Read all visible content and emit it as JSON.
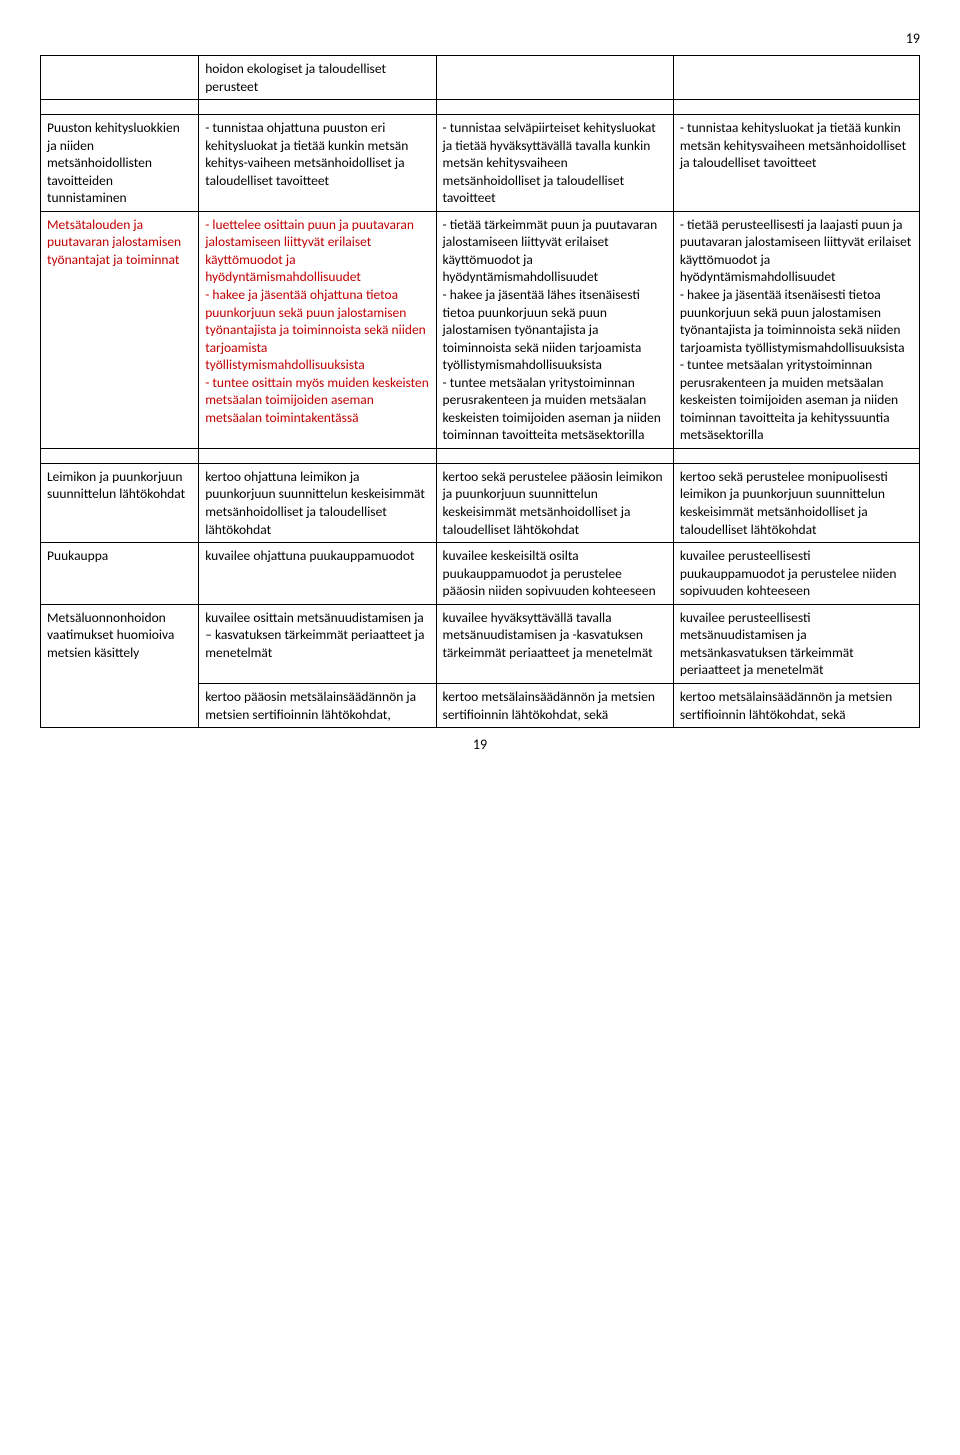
{
  "pageNumberTop": "19",
  "pageNumberBottom": "19",
  "topBlock": {
    "c1": "",
    "c2": "hoidon ekologiset ja taloudelliset perusteet",
    "c3": "",
    "c4": ""
  },
  "rows": [
    {
      "c1": "Puuston kehitysluokkien ja niiden metsänhoidollisten tavoitteiden tunnistaminen",
      "c2": "- tunnistaa ohjattuna puuston eri kehitysluokat ja tietää kunkin metsän kehitys-vaiheen metsänhoidolliset ja taloudelliset tavoitteet",
      "c3": "- tunnistaa selväpiirteiset kehitysluokat ja tietää hyväksyttävällä tavalla kunkin metsän kehitysvaiheen metsänhoidolliset ja taloudelliset tavoitteet",
      "c4": "- tunnistaa kehitysluokat ja tietää kunkin metsän kehitysvaiheen metsänhoidolliset ja taloudelliset tavoitteet",
      "c1_red": false
    },
    {
      "c1": "Metsätalouden ja puutavaran jalostamisen työnantajat ja toiminnat",
      "c2": "- luettelee osittain puun ja puutavaran jalostamiseen liittyvät erilaiset käyttömuodot ja hyödyntämismahdollisuudet\n- hakee ja jäsentää ohjattuna tietoa puunkorjuun sekä puun jalostamisen työnantajista ja toiminnoista sekä niiden tarjoamista työllistymismahdollisuuksista\n- tuntee osittain myös muiden keskeisten metsäalan toimijoiden aseman metsäalan toimintakentässä",
      "c3": "- tietää tärkeimmät puun ja puutavaran jalostamiseen liittyvät erilaiset käyttömuodot ja hyödyntämismahdollisuudet\n- hakee ja jäsentää lähes itsenäisesti tietoa puunkorjuun sekä puun jalostamisen työnantajista ja toiminnoista sekä niiden tarjoamista työllistymismahdollisuuksista\n- tuntee metsäalan yritystoiminnan perusrakenteen ja muiden metsäalan keskeisten toimijoiden aseman ja niiden toiminnan tavoitteita metsäsektorilla",
      "c4": "- tietää perusteellisesti ja laajasti puun ja puutavaran jalostamiseen liittyvät erilaiset käyttömuodot ja hyödyntämismahdollisuudet\n- hakee ja jäsentää itsenäisesti tietoa puunkorjuun sekä puun jalostamisen työnantajista ja toiminnoista sekä niiden tarjoamista työllistymismahdollisuuksista\n- tuntee metsäalan yritystoiminnan perusrakenteen ja muiden metsäalan keskeisten toimijoiden aseman ja niiden toiminnan tavoitteita ja kehityssuuntia metsäsektorilla",
      "c1_red": true,
      "c2_red": true
    }
  ],
  "rows2": [
    {
      "c1": "Leimikon ja puunkorjuun suunnittelun lähtökohdat",
      "c2": "kertoo ohjattuna leimikon ja puunkorjuun suunnittelun keskeisimmät metsänhoidolliset ja taloudelliset lähtökohdat",
      "c3": "kertoo sekä perustelee pääosin leimikon ja puunkorjuun suunnittelun keskeisimmät metsänhoidolliset ja taloudelliset lähtökohdat",
      "c4": "kertoo sekä perustelee monipuolisesti leimikon ja puunkorjuun suunnittelun keskeisimmät metsänhoidolliset ja taloudelliset lähtökohdat"
    },
    {
      "c1": "Puukauppa",
      "c2": "kuvailee ohjattuna puukauppamuodot",
      "c3": "kuvailee keskeisiltä osilta puukauppamuodot ja perustelee pääosin niiden sopivuuden kohteeseen",
      "c4": "kuvailee perusteellisesti puukauppamuodot ja perustelee niiden sopivuuden kohteeseen"
    },
    {
      "c1": "Metsäluonnonhoidon vaatimukset huomioiva metsien käsittely",
      "c2": "kuvailee osittain metsänuudistamisen ja – kasvatuksen tärkeimmät periaatteet ja menetelmät",
      "c3": "kuvailee hyväksyttävällä tavalla metsänuudistamisen ja -kasvatuksen tärkeimmät periaatteet ja menetelmät",
      "c4": "kuvailee perusteellisesti metsänuudistamisen ja metsänkasvatuksen tärkeimmät periaatteet ja menetelmät"
    },
    {
      "c1": "",
      "c2": "kertoo pääosin metsälainsäädännön ja metsien sertifioinnin lähtökohdat,",
      "c3": "kertoo metsälainsäädännön ja metsien sertifioinnin lähtökohdat, sekä",
      "c4": "kertoo metsälainsäädännön ja metsien sertifioinnin lähtökohdat, sekä"
    }
  ]
}
